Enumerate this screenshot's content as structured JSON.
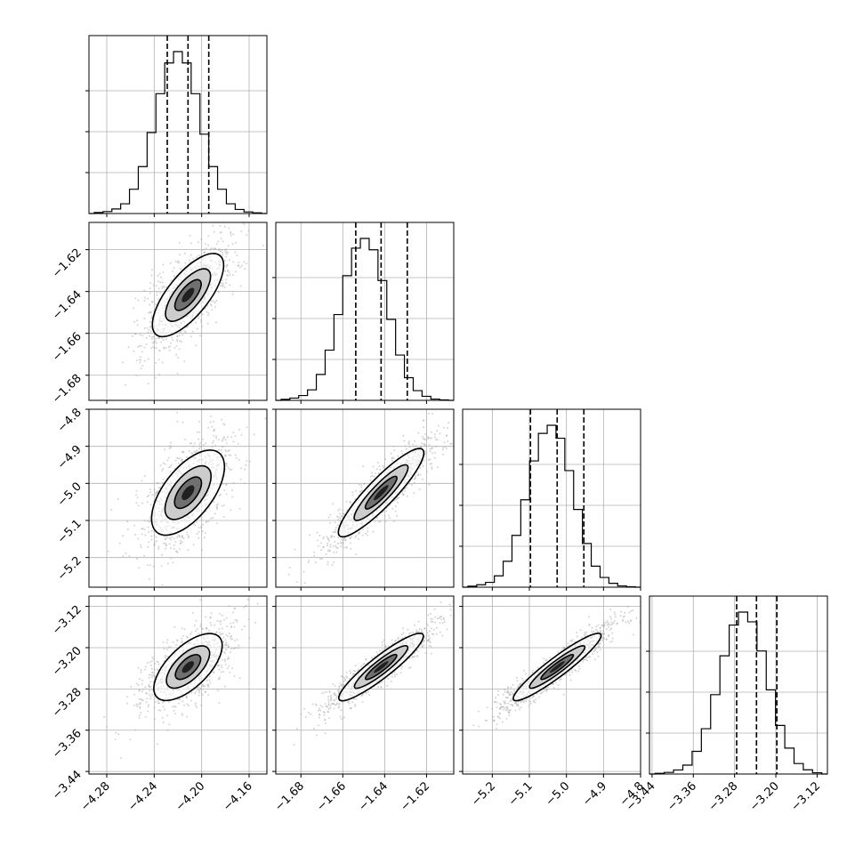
{
  "chart_data": {
    "type": "corner",
    "parameters": [
      {
        "range": [
          -4.295,
          -4.145
        ],
        "ticks": [
          -4.28,
          -4.24,
          -4.2,
          -4.16
        ],
        "tick_labels": [
          "−4.28",
          "−4.24",
          "−4.20",
          "−4.16"
        ],
        "hist_bins": [
          0.006,
          0.012,
          0.028,
          0.06,
          0.15,
          0.29,
          0.5,
          0.74,
          0.93,
          1.0,
          0.93,
          0.74,
          0.49,
          0.29,
          0.15,
          0.06,
          0.025,
          0.01,
          0.004
        ],
        "quantiles": [
          -4.229,
          -4.2115,
          -4.194
        ]
      },
      {
        "range": [
          -1.692,
          -1.607
        ],
        "ticks": [
          -1.68,
          -1.66,
          -1.64,
          -1.62
        ],
        "tick_labels": [
          "−1.68",
          "−1.66",
          "−1.64",
          "−1.62"
        ],
        "hist_bins": [
          0.006,
          0.014,
          0.03,
          0.065,
          0.16,
          0.31,
          0.53,
          0.77,
          0.94,
          1.0,
          0.93,
          0.74,
          0.5,
          0.28,
          0.14,
          0.06,
          0.025,
          0.008,
          0.003
        ],
        "quantiles": [
          -1.6538,
          -1.6417,
          -1.6292
        ]
      },
      {
        "range": [
          -5.28,
          -4.8
        ],
        "ticks": [
          -5.2,
          -5.1,
          -5.0,
          -4.9,
          -4.8
        ],
        "tick_labels": [
          "−5.2",
          "−5.1",
          "−5.0",
          "−4.9",
          "−4.8"
        ],
        "hist_bins": [
          0.006,
          0.015,
          0.03,
          0.07,
          0.16,
          0.32,
          0.54,
          0.78,
          0.95,
          1.0,
          0.92,
          0.72,
          0.48,
          0.27,
          0.13,
          0.06,
          0.024,
          0.008,
          0.003
        ],
        "quantiles": [
          -5.097,
          -5.025,
          -4.953
        ]
      },
      {
        "range": [
          -3.445,
          -3.1
        ],
        "ticks": [
          -3.44,
          -3.36,
          -3.28,
          -3.2,
          -3.12
        ],
        "tick_labels": [
          "−3.44",
          "−3.36",
          "−3.28",
          "−3.20",
          "−3.12"
        ],
        "hist_bins": [
          0.004,
          0.01,
          0.025,
          0.055,
          0.14,
          0.28,
          0.49,
          0.73,
          0.92,
          1.0,
          0.94,
          0.76,
          0.52,
          0.3,
          0.16,
          0.065,
          0.026,
          0.008
        ],
        "quantiles": [
          -3.276,
          -3.2375,
          -3.198
        ]
      }
    ],
    "correlations": [
      [
        1.0,
        0.72,
        0.62,
        0.64
      ],
      [
        0.72,
        1.0,
        0.9,
        0.92
      ],
      [
        0.62,
        0.9,
        1.0,
        0.94
      ],
      [
        0.64,
        0.92,
        0.94,
        1.0
      ]
    ],
    "axis_labels": [
      "",
      "",
      "",
      ""
    ],
    "grid": true
  }
}
